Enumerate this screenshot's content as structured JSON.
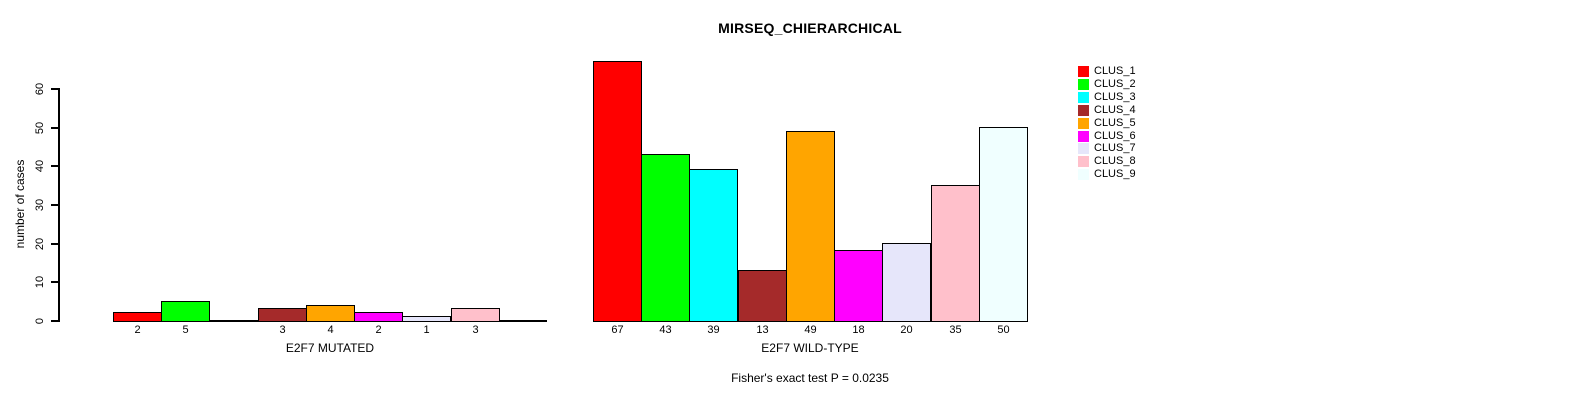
{
  "chart_data": {
    "type": "bar",
    "title": "MIRSEQ_CHIERARCHICAL",
    "subtitle": "Fisher's exact test P = 0.0235",
    "ylabel": "number of cases",
    "yticks": [
      0,
      10,
      20,
      30,
      40,
      50,
      60
    ],
    "ylim": [
      0,
      60
    ],
    "grid": false,
    "legend_position": "right",
    "categories": [
      "CLUS_1",
      "CLUS_2",
      "CLUS_3",
      "CLUS_4",
      "CLUS_5",
      "CLUS_6",
      "CLUS_7",
      "CLUS_8",
      "CLUS_9"
    ],
    "colors": [
      "#FF0000",
      "#00FF00",
      "#00FFFF",
      "#A52A2A",
      "#FFA500",
      "#FF00FF",
      "#E6E6FA",
      "#FFC0CB",
      "#F0FFFF"
    ],
    "panels": [
      {
        "xlabel": "E2F7 MUTATED",
        "values": [
          2,
          5,
          0,
          3,
          4,
          2,
          1,
          3,
          0
        ],
        "bar_labels": [
          "2",
          "5",
          "",
          "3",
          "4",
          "2",
          "1",
          "3",
          ""
        ]
      },
      {
        "xlabel": "E2F7 WILD-TYPE",
        "values": [
          67,
          43,
          39,
          13,
          49,
          18,
          20,
          35,
          50
        ],
        "bar_labels": [
          "67",
          "43",
          "39",
          "13",
          "49",
          "18",
          "20",
          "35",
          "50"
        ]
      }
    ],
    "legend": [
      {
        "label": "CLUS_1",
        "color": "#FF0000"
      },
      {
        "label": "CLUS_2",
        "color": "#00FF00"
      },
      {
        "label": "CLUS_3",
        "color": "#00FFFF"
      },
      {
        "label": "CLUS_4",
        "color": "#A52A2A"
      },
      {
        "label": "CLUS_5",
        "color": "#FFA500"
      },
      {
        "label": "CLUS_6",
        "color": "#FF00FF"
      },
      {
        "label": "CLUS_7",
        "color": "#E6E6FA"
      },
      {
        "label": "CLUS_8",
        "color": "#FFC0CB"
      },
      {
        "label": "CLUS_9",
        "color": "#F0FFFF"
      }
    ]
  }
}
